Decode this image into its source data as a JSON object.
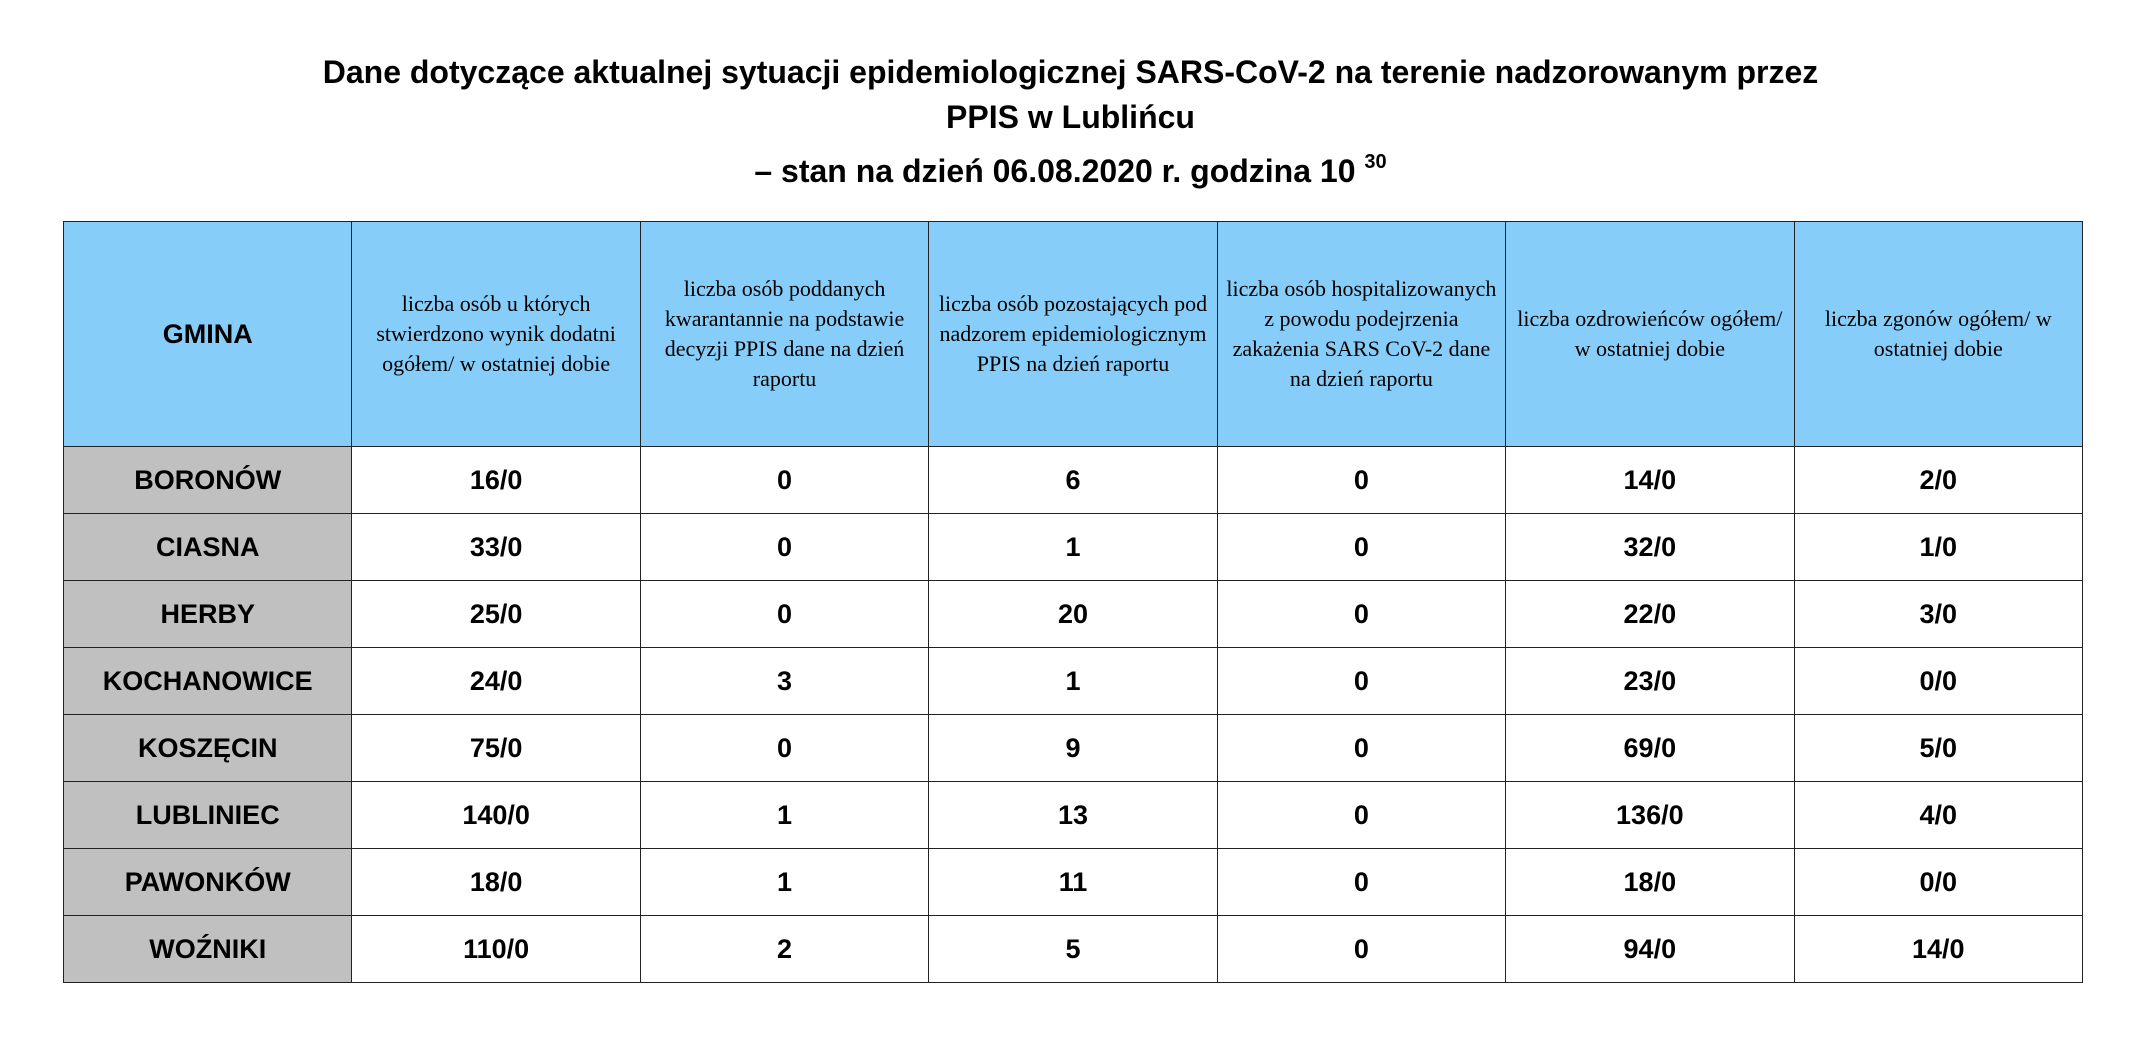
{
  "title": {
    "line1": "Dane dotyczące aktualnej sytuacji epidemiologicznej SARS-CoV-2 na terenie nadzorowanym przez",
    "line2": "PPIS w Lublińcu",
    "line3": "– stan na dzień 06.08.2020 r.  godzina 10",
    "line3_sup": "30"
  },
  "table": {
    "headers": [
      "GMINA",
      "liczba osób u których stwierdzono wynik dodatni ogółem/ w ostatniej dobie",
      "liczba osób poddanych kwarantannie na podstawie decyzji PPIS dane na dzień raportu",
      "liczba osób pozostających pod nadzorem epidemiologicznym PPIS na dzień raportu",
      "liczba osób hospitalizowanych z powodu podejrzenia zakażenia SARS CoV-2 dane na dzień raportu",
      "liczba ozdrowieńców ogółem/ w ostatniej dobie",
      "liczba zgonów ogółem/ w ostatniej dobie"
    ],
    "rows": [
      [
        "BORONÓW",
        "16/0",
        "0",
        "6",
        "0",
        "14/0",
        "2/0"
      ],
      [
        "CIASNA",
        "33/0",
        "0",
        "1",
        "0",
        "32/0",
        "1/0"
      ],
      [
        "HERBY",
        "25/0",
        "0",
        "20",
        "0",
        "22/0",
        "3/0"
      ],
      [
        "KOCHANOWICE",
        "24/0",
        "3",
        "1",
        "0",
        "23/0",
        "0/0"
      ],
      [
        "KOSZĘCIN",
        "75/0",
        "0",
        "9",
        "0",
        "69/0",
        "5/0"
      ],
      [
        "LUBLINIEC",
        "140/0",
        "1",
        "13",
        "0",
        "136/0",
        "4/0"
      ],
      [
        "PAWONKÓW",
        "18/0",
        "1",
        "11",
        "0",
        "18/0",
        "0/0"
      ],
      [
        "WOŹNIKI",
        "110/0",
        "2",
        "5",
        "0",
        "94/0",
        "14/0"
      ]
    ]
  },
  "colors": {
    "header_bg": "#87cdf9",
    "name_bg": "#c0c0c0"
  }
}
